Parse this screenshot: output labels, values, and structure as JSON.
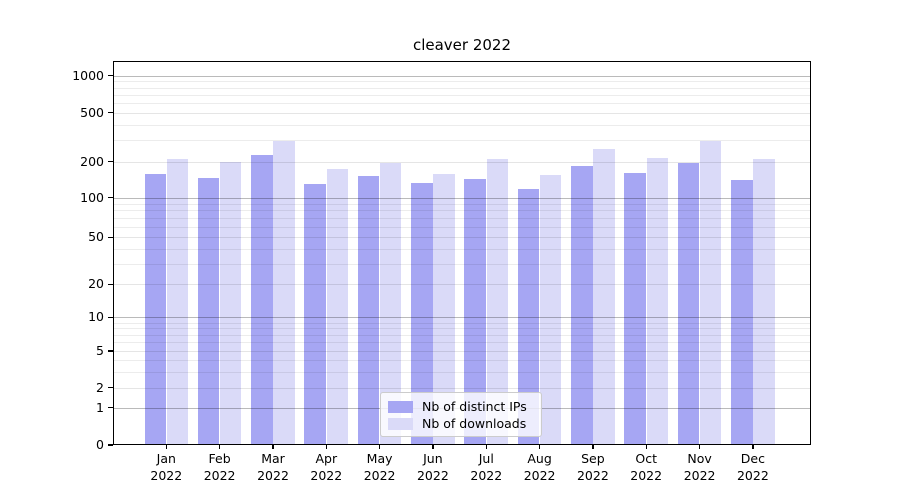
{
  "figure": {
    "title": "cleaver 2022",
    "background_color": "#ffffff"
  },
  "chart_data": {
    "type": "bar",
    "title": "cleaver 2022",
    "categories": [
      "Jan",
      "Feb",
      "Mar",
      "Apr",
      "May",
      "Jun",
      "Jul",
      "Aug",
      "Sep",
      "Oct",
      "Nov",
      "Dec"
    ],
    "category_sublabel": "2022",
    "series": [
      {
        "name": "Nb of distinct IPs",
        "color": "#a6a6f3",
        "values": [
          157,
          146,
          227,
          129,
          151,
          133,
          142,
          119,
          184,
          160,
          196,
          140
        ]
      },
      {
        "name": "Nb of downloads",
        "color": "#dadaf8",
        "values": [
          210,
          200,
          295,
          173,
          195,
          157,
          211,
          156,
          255,
          215,
          296,
          212
        ]
      }
    ],
    "xlabel": "",
    "ylabel": "",
    "y_axis": {
      "scale": "symlog-like",
      "ticks": [
        0,
        1,
        2,
        5,
        10,
        20,
        50,
        100,
        200,
        500,
        1000
      ],
      "decade_ticks": [
        1,
        10,
        100,
        1000
      ],
      "minor_gridlines": [
        3,
        4,
        6,
        7,
        8,
        9,
        30,
        40,
        60,
        70,
        80,
        90,
        300,
        400,
        600,
        700,
        800,
        900
      ],
      "anchor_fractions": [
        [
          0,
          0.0
        ],
        [
          1,
          0.097
        ],
        [
          2,
          0.1492
        ],
        [
          5,
          0.2446
        ],
        [
          10,
          0.3325
        ],
        [
          20,
          0.4185
        ],
        [
          50,
          0.5411
        ],
        [
          100,
          0.6446
        ],
        [
          200,
          0.7375
        ],
        [
          500,
          0.8652
        ],
        [
          1000,
          0.9617
        ]
      ]
    },
    "grid": "both",
    "legend_position": "lower center"
  }
}
